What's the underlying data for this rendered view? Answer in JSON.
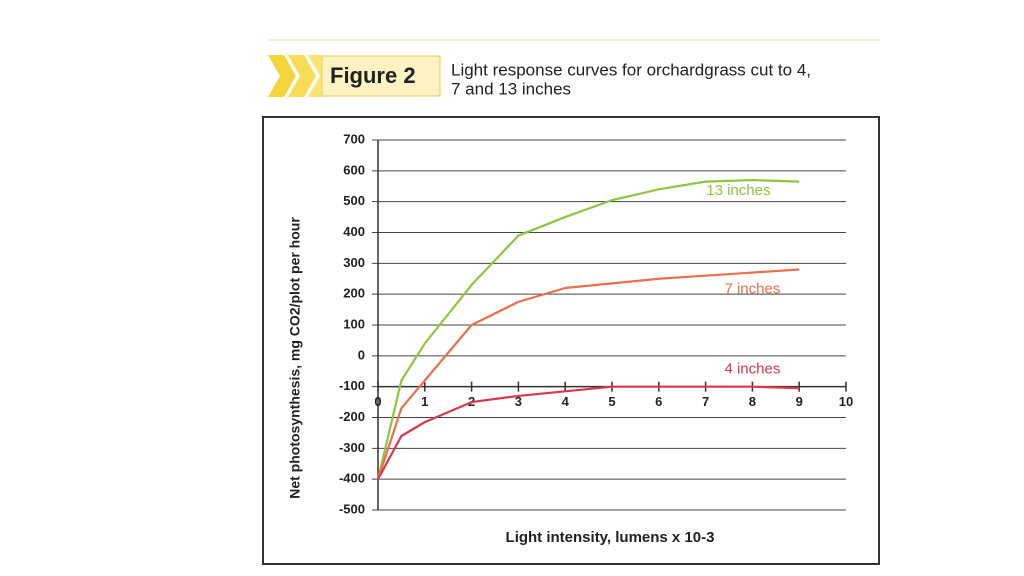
{
  "chart_data": {
    "type": "line",
    "figure_label": "Figure 2",
    "caption_lines": [
      "Light response curves for orchardgrass cut to 4,",
      "7 and 13 inches"
    ],
    "x_label": "Light intensity, lumens x 10-3",
    "y_label": "Net photosynthesis, mg CO2/plot per hour",
    "x": [
      0,
      0.5,
      1,
      2,
      3,
      4,
      5,
      6,
      7,
      8,
      9
    ],
    "series": [
      {
        "name": "13 inches",
        "color": "#8cc63f",
        "values": [
          -400,
          -80,
          40,
          230,
          390,
          450,
          505,
          540,
          565,
          570,
          565
        ]
      },
      {
        "name": "7 inches",
        "color": "#e8704a",
        "values": [
          -400,
          -170,
          -80,
          100,
          175,
          220,
          235,
          250,
          260,
          270,
          280
        ]
      },
      {
        "name": "4 inches",
        "color": "#d8384a",
        "values": [
          -400,
          -260,
          -215,
          -150,
          -130,
          -115,
          -100,
          -100,
          -100,
          -100,
          -105
        ]
      }
    ],
    "xlim": [
      0,
      10
    ],
    "xticks": [
      0,
      1,
      2,
      3,
      4,
      5,
      6,
      7,
      8,
      9,
      10
    ],
    "ylim": [
      -500,
      700
    ],
    "yticks": [
      700,
      600,
      500,
      400,
      300,
      200,
      100,
      0,
      -100,
      -200,
      -300,
      -400,
      -500
    ],
    "xaxis_position": -100,
    "grid": true
  }
}
